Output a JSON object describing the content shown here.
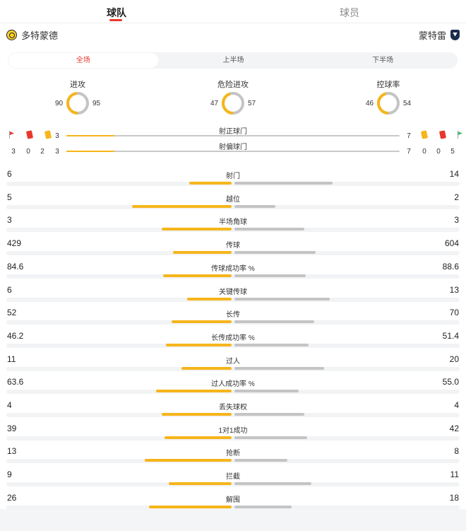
{
  "tabs": {
    "team": "球队",
    "player": "球员"
  },
  "teams": {
    "home": "多特蒙德",
    "away": "蒙特雷"
  },
  "periods": [
    "全场",
    "上半场",
    "下半场"
  ],
  "donuts": [
    {
      "label": "进攻",
      "home": "90",
      "away": "95",
      "home_share": 0.486
    },
    {
      "label": "危险进攻",
      "home": "47",
      "away": "57",
      "home_share": 0.452
    },
    {
      "label": "控球率",
      "home": "46",
      "away": "54",
      "home_share": 0.46
    }
  ],
  "discipline": {
    "home": {
      "corners": "3",
      "red": "0",
      "yellow": "2"
    },
    "away": {
      "yellow": "0",
      "red": "0",
      "corners": "5"
    }
  },
  "shots_target": [
    {
      "label": "射正球门",
      "home": "3",
      "away": "7",
      "home_share": 0.3
    },
    {
      "label": "射偏球门",
      "home": "3",
      "away": "7",
      "home_share": 0.3
    }
  ],
  "stats": [
    {
      "label": "射门",
      "home": "6",
      "away": "14",
      "home_frac": 0.3,
      "away_frac": 0.7
    },
    {
      "label": "越位",
      "home": "5",
      "away": "2",
      "home_frac": 0.71,
      "away_frac": 0.29
    },
    {
      "label": "半场角球",
      "home": "3",
      "away": "3",
      "home_frac": 0.5,
      "away_frac": 0.5
    },
    {
      "label": "传球",
      "home": "429",
      "away": "604",
      "home_frac": 0.42,
      "away_frac": 0.58
    },
    {
      "label": "传球成功率 %",
      "home": "84.6",
      "away": "88.6",
      "home_frac": 0.49,
      "away_frac": 0.51
    },
    {
      "label": "关键传球",
      "home": "6",
      "away": "13",
      "home_frac": 0.32,
      "away_frac": 0.68
    },
    {
      "label": "长传",
      "home": "52",
      "away": "70",
      "home_frac": 0.43,
      "away_frac": 0.57
    },
    {
      "label": "长传成功率 %",
      "home": "46.2",
      "away": "51.4",
      "home_frac": 0.47,
      "away_frac": 0.53
    },
    {
      "label": "过人",
      "home": "11",
      "away": "20",
      "home_frac": 0.36,
      "away_frac": 0.64
    },
    {
      "label": "过人成功率 %",
      "home": "63.6",
      "away": "55.0",
      "home_frac": 0.54,
      "away_frac": 0.46
    },
    {
      "label": "丢失球权",
      "home": "4",
      "away": "4",
      "home_frac": 0.5,
      "away_frac": 0.5
    },
    {
      "label": "1对1成功",
      "home": "39",
      "away": "42",
      "home_frac": 0.48,
      "away_frac": 0.52
    },
    {
      "label": "抢断",
      "home": "13",
      "away": "8",
      "home_frac": 0.62,
      "away_frac": 0.38
    },
    {
      "label": "拦截",
      "home": "9",
      "away": "11",
      "home_frac": 0.45,
      "away_frac": 0.55
    },
    {
      "label": "解围",
      "home": "26",
      "away": "18",
      "home_frac": 0.59,
      "away_frac": 0.41
    }
  ],
  "colors": {
    "home": "#f6b51b",
    "away": "#c4c4c4",
    "accent": "#e8372c"
  }
}
